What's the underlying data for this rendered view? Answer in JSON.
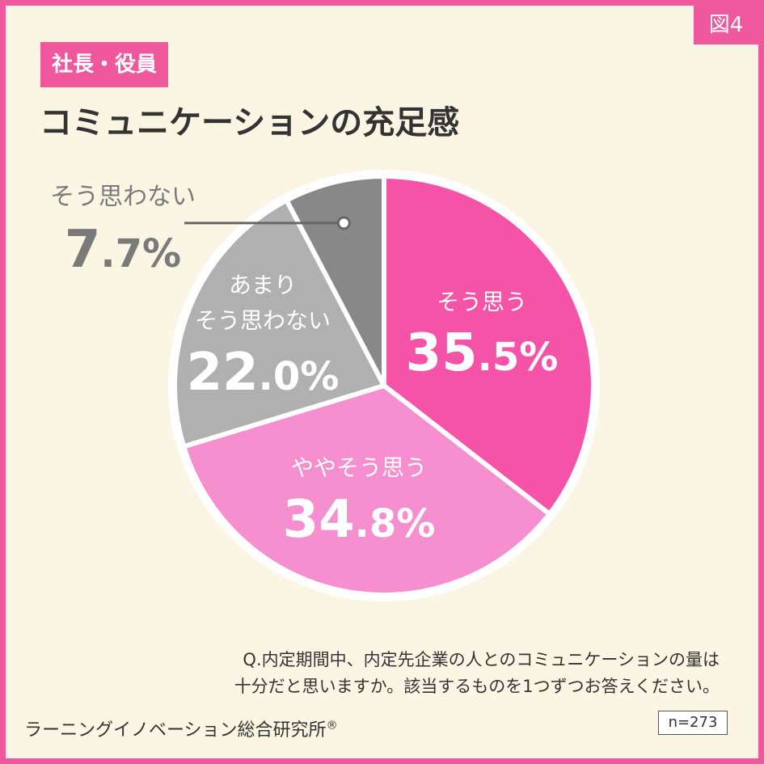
{
  "figure_number": "図4",
  "segment": "社長・役員",
  "title": "コミュニケーションの充足感",
  "question_lines": [
    "Q.内定期間中、内定先企業の人とのコミュニケーションの量は",
    "十分だと思いますか。該当するものを1つずつお答えください。"
  ],
  "source": "ラーニングイノベーション総合研究所",
  "source_mark": "®",
  "sample_size": "n=273",
  "colors": {
    "background": "#fbf5e3",
    "accent": "#f0589e",
    "outline": "#ffffff"
  },
  "chart_data": {
    "type": "pie",
    "unit": "%",
    "start_angle_deg": 0,
    "direction": "clockwise",
    "slices": [
      {
        "label_lines": [
          "そう思う"
        ],
        "value": 35.5,
        "int": "35",
        "dec": ".5",
        "color": "#f453a8",
        "label_color": "#ffffff",
        "callout": false
      },
      {
        "label_lines": [
          "ややそう思う"
        ],
        "value": 34.8,
        "int": "34",
        "dec": ".8",
        "color": "#f58fcf",
        "label_color": "#ffffff",
        "callout": false
      },
      {
        "label_lines": [
          "あまり",
          "そう思わない"
        ],
        "value": 22.0,
        "int": "22",
        "dec": ".0",
        "color": "#b0b0b0",
        "label_color": "#ffffff",
        "callout": false
      },
      {
        "label_lines": [
          "そう思わない"
        ],
        "value": 7.7,
        "int": "7",
        "dec": ".7",
        "color": "#888888",
        "label_color": "#7a7a7a",
        "callout": true
      }
    ]
  }
}
